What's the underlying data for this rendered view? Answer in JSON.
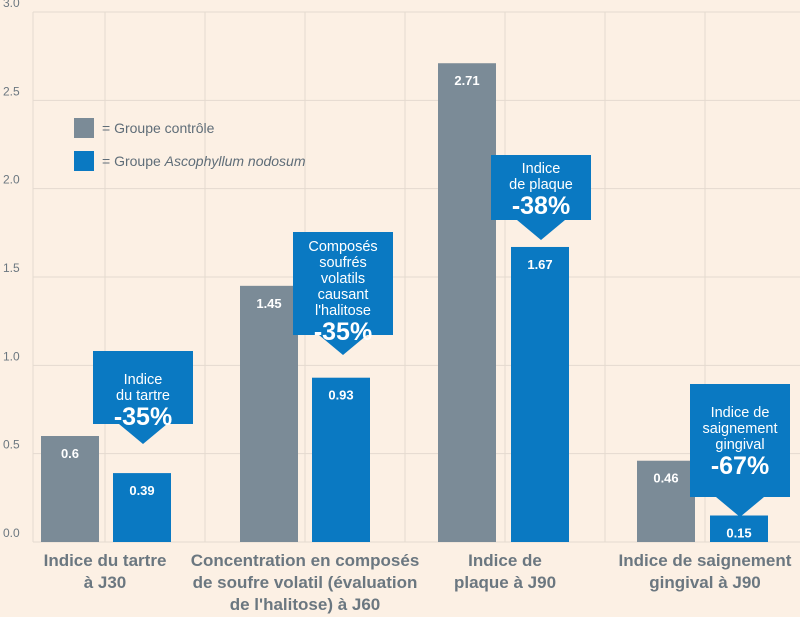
{
  "chart_data": {
    "type": "bar",
    "ylim": [
      0,
      3.0
    ],
    "yticks": [
      "0.0",
      "0.5",
      "1.0",
      "1.5",
      "2.0",
      "2.5",
      "3.0"
    ],
    "categories": [
      "Indice du tartre à J30",
      "Concentration en composés de soufre volatil (évaluation de l'halitose) à J60",
      "Indice de plaque à J90",
      "Indice de saignement gingival à J90"
    ],
    "category_label_lines": [
      [
        "Indice du tartre",
        "à J30"
      ],
      [
        "Concentration en composés",
        "de soufre volatil (évaluation",
        "de l'halitose) à J60"
      ],
      [
        "Indice de",
        "plaque à J90"
      ],
      [
        "Indice de saignement",
        "gingival à J90"
      ]
    ],
    "series": [
      {
        "name": "Groupe contrôle",
        "values": [
          0.6,
          1.45,
          2.71,
          0.46
        ],
        "labels": [
          "0.6",
          "1.45",
          "2.71",
          "0.46"
        ]
      },
      {
        "name": "Groupe Ascophyllum nodosum",
        "values": [
          0.39,
          0.93,
          1.67,
          0.15
        ],
        "labels": [
          "0.39",
          "0.93",
          "1.67",
          "0.15"
        ]
      }
    ],
    "colors": {
      "control": "#7b8b97",
      "treatment": "#0a79c2",
      "grid": "#e4dacf",
      "axis_text": "#6b7780"
    },
    "annotations": [
      {
        "lines": [
          "Indice",
          "du tartre"
        ],
        "percent": "-35%"
      },
      {
        "lines": [
          "Composés",
          "soufrés",
          "volatils",
          "causant",
          "l'halitose"
        ],
        "percent": "-35%"
      },
      {
        "lines": [
          "Indice",
          "de plaque"
        ],
        "percent": "-38%"
      },
      {
        "lines": [
          "Indice de",
          "saignement",
          "gingival"
        ],
        "percent": "-67%"
      }
    ]
  },
  "legend": {
    "control": {
      "prefix": "= Groupe contrôle"
    },
    "treatment": {
      "prefix": "= Groupe ",
      "species": "Ascophyllum nodosum"
    }
  }
}
